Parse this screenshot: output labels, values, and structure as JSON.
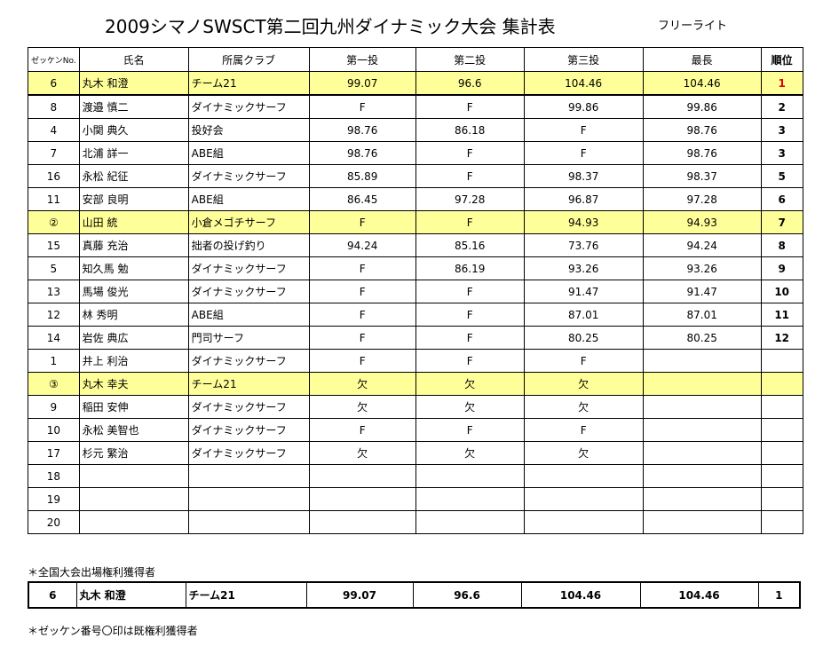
{
  "title": "2009シマノSWSCT第二回九州ダイナミック大会 集計表",
  "subtitle": "フリーライト",
  "headers": [
    "ゼッケンNo.",
    "氏名",
    "所属クラブ",
    "第一投",
    "第二投",
    "第三投",
    "最長",
    "順位"
  ],
  "rows": [
    {
      "no": "6",
      "name": "丸木 和澄",
      "club": "チーム21",
      "t1": "99.07",
      "t2": "96.6",
      "t3": "104.46",
      "max": "104.46",
      "rank": "1"
    },
    {
      "no": "8",
      "name": "渡邉 慎二",
      "club": "ダイナミックサーフ",
      "t1": "F",
      "t2": "F",
      "t3": "99.86",
      "max": "99.86",
      "rank": "2"
    },
    {
      "no": "4",
      "name": "小関 典久",
      "club": "投好会",
      "t1": "98.76",
      "t2": "86.18",
      "t3": "F",
      "max": "98.76",
      "rank": "3"
    },
    {
      "no": "7",
      "name": "北浦 詳一",
      "club": "ABE組",
      "t1": "98.76",
      "t2": "F",
      "t3": "F",
      "max": "98.76",
      "rank": "3"
    },
    {
      "no": "16",
      "name": "永松 紀征",
      "club": "ダイナミックサーフ",
      "t1": "85.89",
      "t2": "F",
      "t3": "98.37",
      "max": "98.37",
      "rank": "5"
    },
    {
      "no": "11",
      "name": "安部 良明",
      "club": "ABE組",
      "t1": "86.45",
      "t2": "97.28",
      "t3": "96.87",
      "max": "97.28",
      "rank": "6"
    },
    {
      "no": "②",
      "name": "山田 統",
      "club": "小倉メゴチサーフ",
      "t1": "F",
      "t2": "F",
      "t3": "94.93",
      "max": "94.93",
      "rank": "7"
    },
    {
      "no": "15",
      "name": "真藤 充治",
      "club": "拙者の投げ釣り",
      "t1": "94.24",
      "t2": "85.16",
      "t3": "73.76",
      "max": "94.24",
      "rank": "8"
    },
    {
      "no": "5",
      "name": "知久馬 勉",
      "club": "ダイナミックサーフ",
      "t1": "F",
      "t2": "86.19",
      "t3": "93.26",
      "max": "93.26",
      "rank": "9"
    },
    {
      "no": "13",
      "name": "馬場 俊光",
      "club": "ダイナミックサーフ",
      "t1": "F",
      "t2": "F",
      "t3": "91.47",
      "max": "91.47",
      "rank": "10"
    },
    {
      "no": "12",
      "name": "林 秀明",
      "club": "ABE組",
      "t1": "F",
      "t2": "F",
      "t3": "87.01",
      "max": "87.01",
      "rank": "11"
    },
    {
      "no": "14",
      "name": "岩佐 典広",
      "club": "門司サーフ",
      "t1": "F",
      "t2": "F",
      "t3": "80.25",
      "max": "80.25",
      "rank": "12"
    },
    {
      "no": "1",
      "name": "井上 利治",
      "club": "ダイナミックサーフ",
      "t1": "F",
      "t2": "F",
      "t3": "F",
      "max": "",
      "rank": ""
    },
    {
      "no": "③",
      "name": "丸木 幸夫",
      "club": "チーム21",
      "t1": "欠",
      "t2": "欠",
      "t3": "欠",
      "max": "",
      "rank": ""
    },
    {
      "no": "9",
      "name": "稲田 安伸",
      "club": "ダイナミックサーフ",
      "t1": "欠",
      "t2": "欠",
      "t3": "欠",
      "max": "",
      "rank": ""
    },
    {
      "no": "10",
      "name": "永松 美智也",
      "club": "ダイナミックサーフ",
      "t1": "F",
      "t2": "F",
      "t3": "F",
      "max": "",
      "rank": ""
    },
    {
      "no": "17",
      "name": "杉元 繁治",
      "club": "ダイナミックサーフ",
      "t1": "欠",
      "t2": "欠",
      "t3": "欠",
      "max": "",
      "rank": ""
    },
    {
      "no": "18",
      "name": "",
      "club": "",
      "t1": "",
      "t2": "",
      "t3": "",
      "max": "",
      "rank": ""
    },
    {
      "no": "19",
      "name": "",
      "club": "",
      "t1": "",
      "t2": "",
      "t3": "",
      "max": "",
      "rank": ""
    },
    {
      "no": "20",
      "name": "",
      "club": "",
      "t1": "",
      "t2": "",
      "t3": "",
      "max": "",
      "rank": ""
    }
  ],
  "note_qualifier": "＊全国大会出場権利獲得者",
  "qualifier": {
    "no": "6",
    "name": "丸木 和澄",
    "club": "チーム21",
    "t1": "99.07",
    "t2": "96.6",
    "t3": "104.46",
    "max": "104.46",
    "rank": "1"
  },
  "note_bib": "＊ゼッケン番号〇印は既権利獲得者",
  "colors": {
    "highlight": "#ffff99",
    "first_place": "#e00000"
  }
}
